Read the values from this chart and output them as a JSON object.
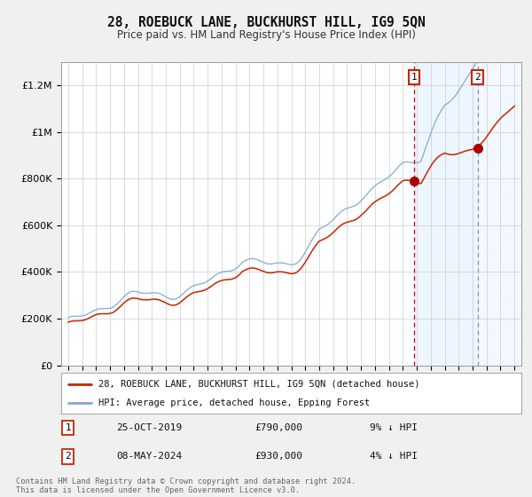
{
  "title": "28, ROEBUCK LANE, BUCKHURST HILL, IG9 5QN",
  "subtitle": "Price paid vs. HM Land Registry's House Price Index (HPI)",
  "legend_line1": "28, ROEBUCK LANE, BUCKHURST HILL, IG9 5QN (detached house)",
  "legend_line2": "HPI: Average price, detached house, Epping Forest",
  "sale1_date": "25-OCT-2019",
  "sale1_price": 790000,
  "sale1_hpi_diff": "9% ↓ HPI",
  "sale1_year": 2019.82,
  "sale2_date": "08-MAY-2024",
  "sale2_price": 930000,
  "sale2_hpi_diff": "4% ↓ HPI",
  "sale2_year": 2024.36,
  "hpi_color": "#7aa8d4",
  "price_color": "#cc2200",
  "dot_color": "#aa0000",
  "sale1_vline_color": "#cc0000",
  "sale2_vline_color": "#7799bb",
  "shade1_color": "#ddeeff",
  "ylabel_ticks": [
    "£0",
    "£200K",
    "£400K",
    "£600K",
    "£800K",
    "£1M",
    "£1.2M"
  ],
  "ytick_vals": [
    0,
    200000,
    400000,
    600000,
    800000,
    1000000,
    1200000
  ],
  "ylim": [
    0,
    1300000
  ],
  "xlim_start": 1994.5,
  "xlim_end": 2027.5,
  "copyright_text": "Contains HM Land Registry data © Crown copyright and database right 2024.\nThis data is licensed under the Open Government Licence v3.0.",
  "background_color": "#f0f0f0",
  "plot_bg_color": "#ffffff",
  "grid_color": "#cccccc"
}
